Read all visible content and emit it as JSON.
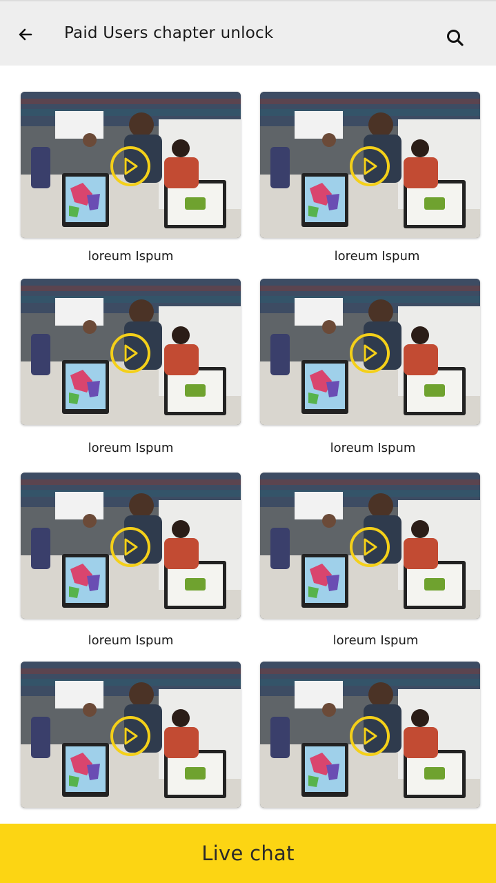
{
  "header": {
    "title": "Paid Users chapter unlock",
    "back_icon": "arrow-left-icon",
    "search_icon": "search-icon"
  },
  "videos": [
    {
      "caption": "loreum Ispum"
    },
    {
      "caption": "loreum Ispum"
    },
    {
      "caption": "loreum Ispum"
    },
    {
      "caption": "loreum Ispum"
    },
    {
      "caption": "loreum Ispum"
    },
    {
      "caption": "loreum Ispum"
    },
    {
      "caption": "",
      "play_icon": "play-icon"
    },
    {
      "caption": "",
      "play_icon": "play-icon"
    }
  ],
  "footer": {
    "live_chat_label": "Live chat"
  },
  "colors": {
    "accent": "#fcd513",
    "play_ring": "#f4d019",
    "header_bg": "#eeeeee"
  }
}
